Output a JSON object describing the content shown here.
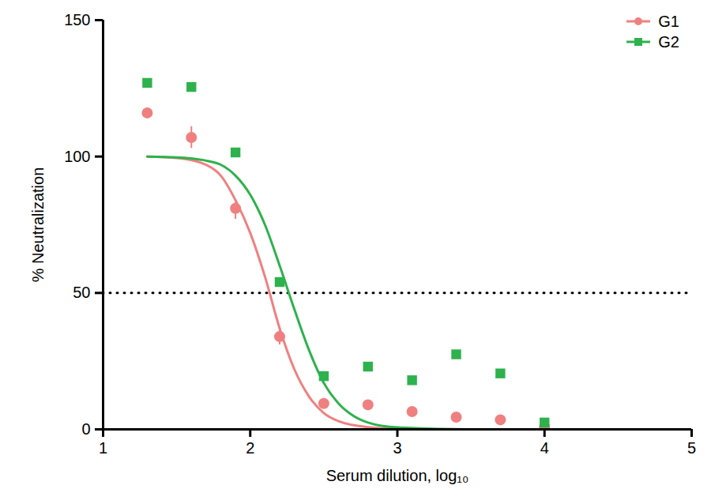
{
  "chart_data": {
    "type": "scatter",
    "x_label": "Serum dilution, log₁₀",
    "y_label": "% Neutralization",
    "xlim": [
      1,
      5
    ],
    "xticks": [
      1,
      2,
      3,
      4,
      5
    ],
    "ylim": [
      0,
      150
    ],
    "yticks": [
      0,
      50,
      100,
      150
    ],
    "grid": false,
    "legend": "top-right",
    "reference_line": {
      "value": 50,
      "line_style": "dotted"
    },
    "series": [
      {
        "name": "G1",
        "color": "#f08080",
        "marker": "circle",
        "x": [
          1.3,
          1.6,
          1.9,
          2.2,
          2.5,
          2.8,
          3.1,
          3.4,
          3.7,
          4.0
        ],
        "values": [
          116,
          107,
          81,
          34,
          9.5,
          9,
          6.5,
          4.5,
          3.5,
          1
        ],
        "error_low": [
          null,
          103,
          77,
          31,
          null,
          null,
          null,
          null,
          null,
          null
        ],
        "error_high": [
          null,
          111,
          84,
          37,
          null,
          null,
          null,
          null,
          null,
          null
        ],
        "fit_x": [
          1.3,
          1.5,
          1.7,
          1.8,
          1.9,
          2.0,
          2.1,
          2.2,
          2.3,
          2.4,
          2.5,
          2.6,
          2.8,
          3.0,
          3.5,
          4.0
        ],
        "fit_values": [
          100,
          99.5,
          97,
          93,
          84,
          72,
          56,
          37,
          22,
          12,
          6,
          3,
          0.8,
          0.2,
          0,
          0
        ]
      },
      {
        "name": "G2",
        "color": "#2db24d",
        "marker": "square",
        "x": [
          1.3,
          1.6,
          1.9,
          2.2,
          2.5,
          2.8,
          3.1,
          3.4,
          3.7,
          4.0
        ],
        "values": [
          127,
          125.5,
          101.5,
          54,
          19.5,
          23,
          18,
          27.5,
          20.5,
          2.5
        ],
        "fit_x": [
          1.3,
          1.5,
          1.7,
          1.8,
          1.9,
          2.0,
          2.1,
          2.2,
          2.3,
          2.4,
          2.5,
          2.6,
          2.7,
          2.8,
          3.0,
          3.5,
          4.0
        ],
        "fit_values": [
          100,
          99.7,
          98.5,
          97,
          93,
          86,
          75,
          60,
          44,
          29,
          17,
          9.5,
          5,
          2.5,
          0.7,
          0,
          0
        ]
      }
    ]
  }
}
